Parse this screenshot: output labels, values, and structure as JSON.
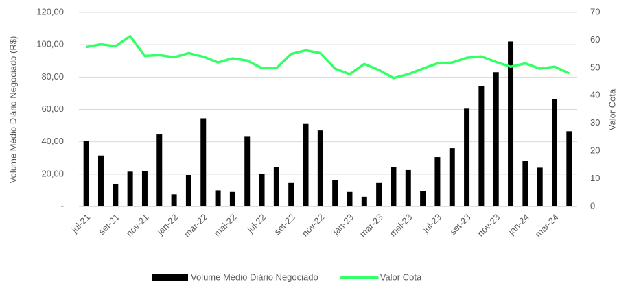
{
  "chart_data": {
    "type": "bar-line",
    "y_label": "Volume Médio Diário Negociado (R$)",
    "y2_label": "Valor Cota",
    "categories": [
      "jul-21",
      null,
      "set-21",
      null,
      "nov-21",
      null,
      "jan-22",
      null,
      "mar-22",
      null,
      "mai-22",
      null,
      "jul-22",
      null,
      "set-22",
      null,
      "nov-22",
      null,
      "jan-23",
      null,
      "mar-23",
      null,
      "mai-23",
      null,
      "jul-23",
      null,
      "set-23",
      null,
      "nov-23",
      null,
      "jan-24",
      null,
      "mar-24",
      null
    ],
    "series": [
      {
        "name": "Volume Médio Diário Negociado",
        "type": "bar",
        "color": "#000000",
        "axis": "y",
        "values": [
          40.5,
          31.5,
          14,
          21.5,
          22,
          44.5,
          7.5,
          19.5,
          54.5,
          10,
          9,
          43.5,
          20,
          24.5,
          14.5,
          51,
          47,
          16.5,
          9,
          6,
          14.5,
          24.5,
          22.5,
          9.5,
          30.5,
          36,
          60.5,
          74.5,
          83,
          102,
          28,
          24,
          66.5,
          46.5
        ]
      },
      {
        "name": "Valor Cota",
        "type": "line",
        "color": "#33ff66",
        "axis": "y2",
        "values": [
          57.5,
          58.5,
          57.8,
          61.4,
          54.3,
          54.6,
          53.8,
          55.3,
          54,
          51.9,
          53.4,
          52.6,
          49.9,
          49.9,
          55,
          56.3,
          55.3,
          49.7,
          47.7,
          51.4,
          49.2,
          46.3,
          47.7,
          49.7,
          51.6,
          51.9,
          53.6,
          54.1,
          52.1,
          50.4,
          51.6,
          49.7,
          50.4,
          48
        ]
      }
    ],
    "ylim": [
      0,
      120
    ],
    "yticks": [
      {
        "value": 0,
        "label": "-"
      },
      {
        "value": 20,
        "label": "20,00"
      },
      {
        "value": 40,
        "label": "40,00"
      },
      {
        "value": 60,
        "label": "60,00"
      },
      {
        "value": 80,
        "label": "80,00"
      },
      {
        "value": 100,
        "label": "100,00"
      },
      {
        "value": 120,
        "label": "120,00"
      }
    ],
    "y2lim": [
      0,
      70
    ],
    "y2ticks": [
      0,
      10,
      20,
      30,
      40,
      50,
      60,
      70
    ],
    "grid": true,
    "legend": "bottom"
  }
}
